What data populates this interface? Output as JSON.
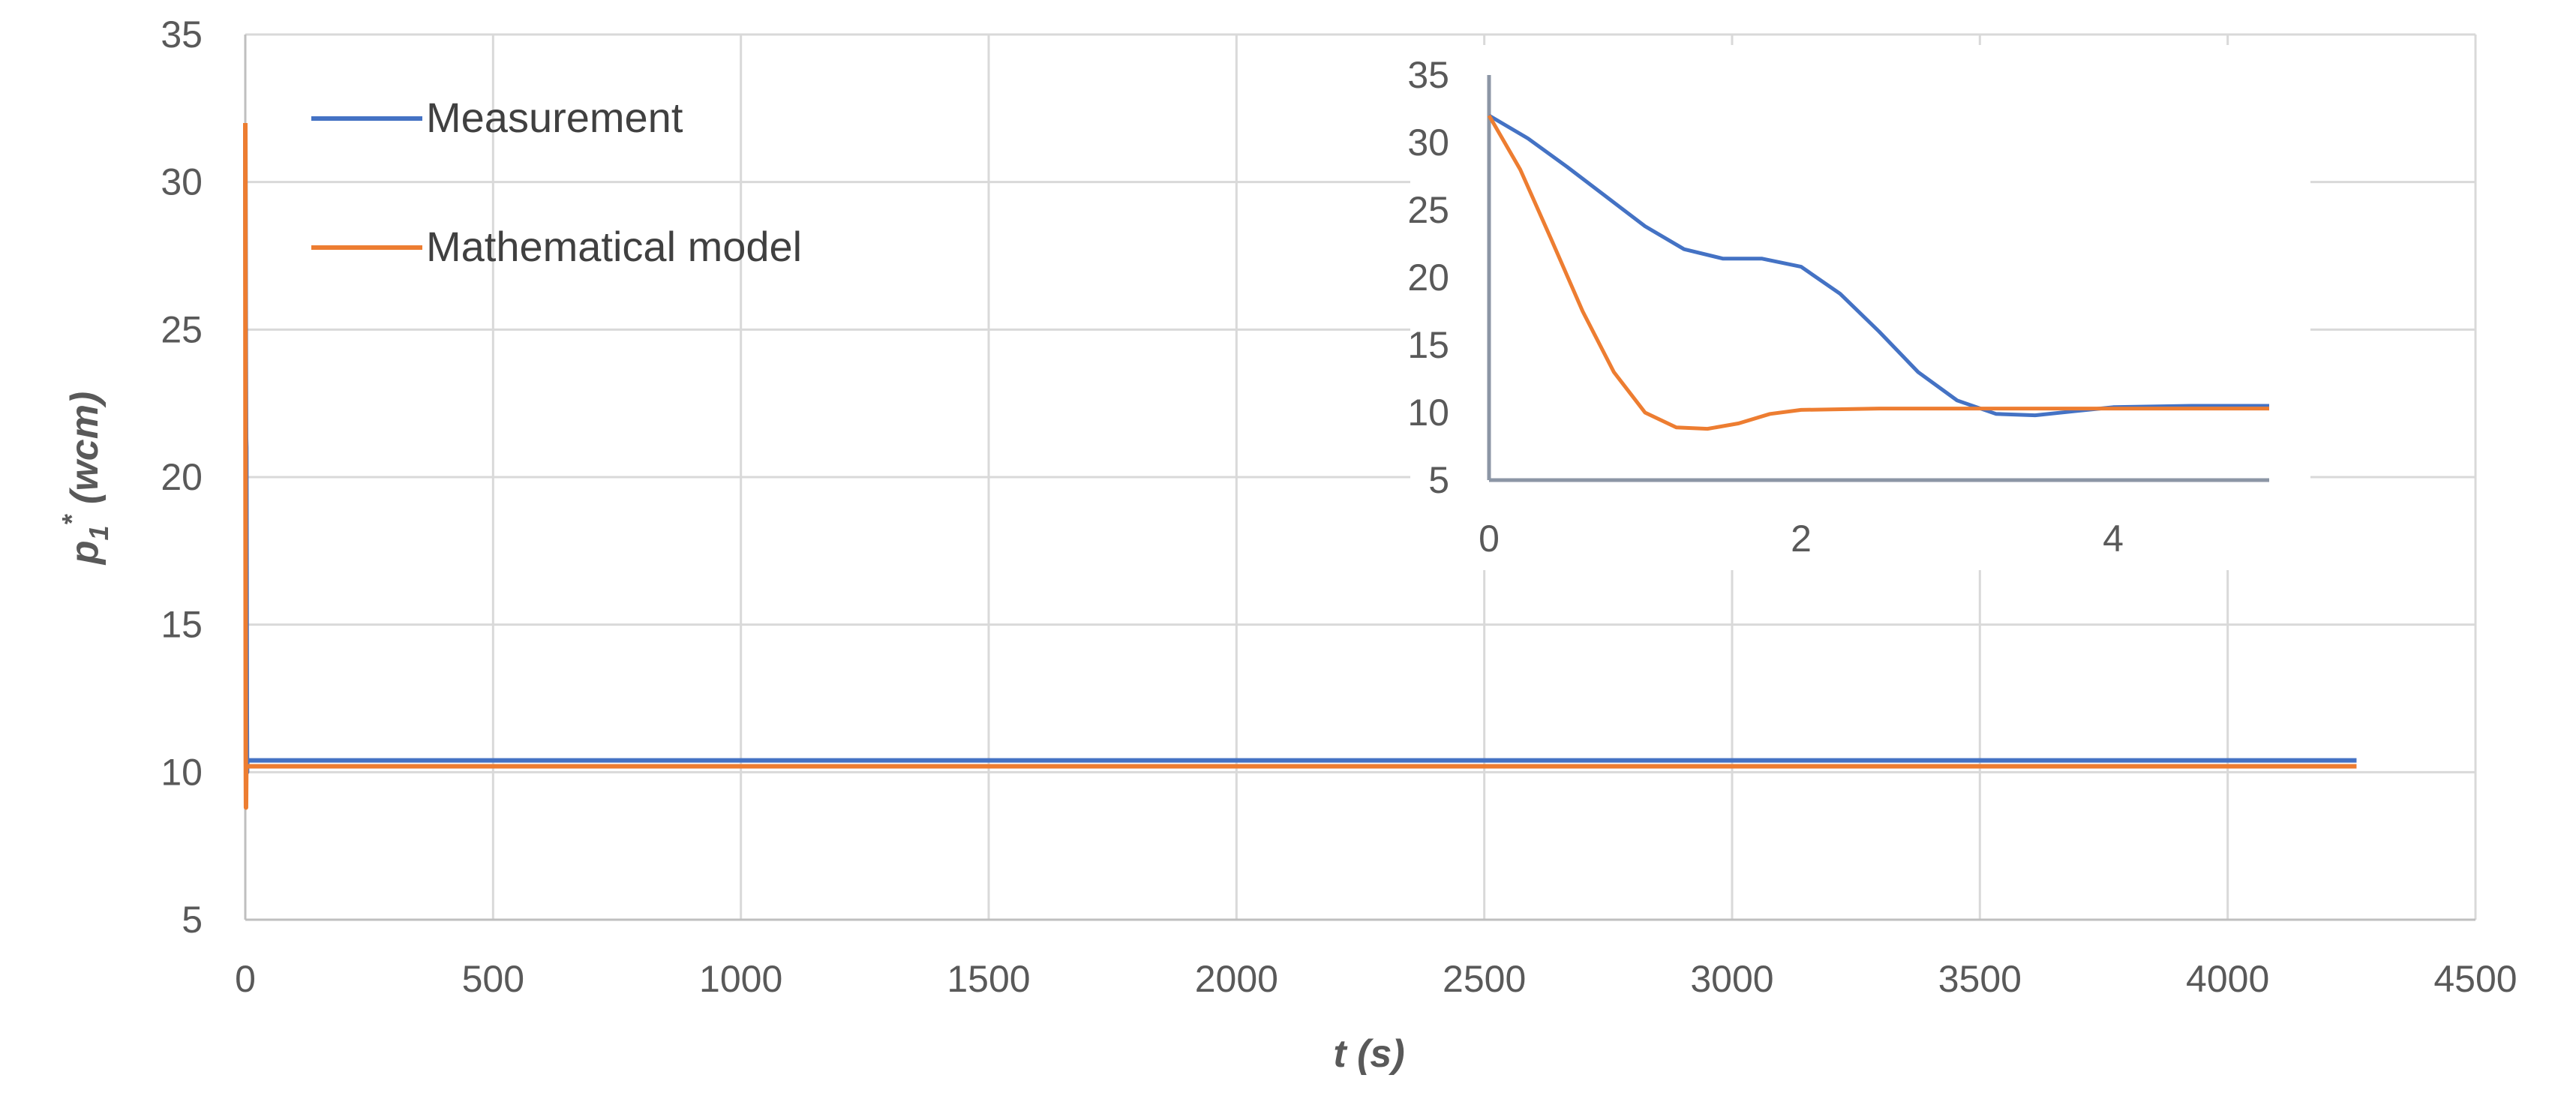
{
  "chart_data": [
    {
      "type": "line",
      "title": "",
      "xlabel": "t (s)",
      "ylabel": {
        "base": "p",
        "sub": "1",
        "sup": "*",
        "unit": " (wcm)"
      },
      "xlim": [
        0,
        4500
      ],
      "ylim": [
        5,
        35
      ],
      "xticks": [
        "0",
        "500",
        "1000",
        "1500",
        "2000",
        "2500",
        "3000",
        "3500",
        "4000",
        "4500"
      ],
      "yticks": [
        "5",
        "10",
        "15",
        "20",
        "25",
        "30",
        "35"
      ],
      "grid": true,
      "legend": {
        "placement": "top-left",
        "entries": [
          "Measurement",
          "Mathematical model"
        ]
      },
      "series": [
        {
          "name": "Measurement",
          "color": "#4472C4",
          "points": [
            [
              0,
              32
            ],
            [
              0.5,
              28
            ],
            [
              1,
              24
            ],
            [
              1.5,
              21.3
            ],
            [
              2,
              21
            ],
            [
              2.5,
              17
            ],
            [
              3,
              12
            ],
            [
              3.5,
              10
            ],
            [
              4,
              10.4
            ],
            [
              5,
              10.4
            ],
            [
              100,
              10.4
            ],
            [
              1000,
              10.4
            ],
            [
              2000,
              10.4
            ],
            [
              3000,
              10.4
            ],
            [
              4000,
              10.4
            ],
            [
              4260,
              10.4
            ]
          ]
        },
        {
          "name": "Mathematical model",
          "color": "#ED7D31",
          "points": [
            [
              0,
              32
            ],
            [
              0.5,
              19
            ],
            [
              1,
              10.5
            ],
            [
              1.4,
              8.8
            ],
            [
              2,
              10.2
            ],
            [
              3,
              10.2
            ],
            [
              4,
              10.2
            ],
            [
              5,
              10.2
            ],
            [
              100,
              10.2
            ],
            [
              1000,
              10.2
            ],
            [
              2000,
              10.2
            ],
            [
              3000,
              10.2
            ],
            [
              4000,
              10.2
            ],
            [
              4260,
              10.2
            ]
          ]
        }
      ]
    },
    {
      "type": "line",
      "title": "",
      "xlabel": "",
      "ylabel": "",
      "xlim": [
        0,
        5
      ],
      "ylim": [
        5,
        35
      ],
      "xticks": [
        "0",
        "2",
        "4"
      ],
      "yticks": [
        "5",
        "10",
        "15",
        "20",
        "25",
        "30",
        "35"
      ],
      "grid": false,
      "series": [
        {
          "color": "#4472C4",
          "points": [
            [
              0,
              32
            ],
            [
              0.25,
              30.3
            ],
            [
              0.5,
              28.2
            ],
            [
              0.75,
              26
            ],
            [
              1,
              23.8
            ],
            [
              1.25,
              22.1
            ],
            [
              1.5,
              21.4
            ],
            [
              1.75,
              21.4
            ],
            [
              2,
              20.8
            ],
            [
              2.25,
              18.8
            ],
            [
              2.5,
              16
            ],
            [
              2.75,
              13
            ],
            [
              3,
              10.9
            ],
            [
              3.25,
              9.9
            ],
            [
              3.5,
              9.8
            ],
            [
              3.75,
              10.1
            ],
            [
              4,
              10.4
            ],
            [
              4.5,
              10.5
            ],
            [
              5,
              10.5
            ]
          ]
        },
        {
          "color": "#ED7D31",
          "points": [
            [
              0,
              32
            ],
            [
              0.2,
              28
            ],
            [
              0.4,
              22.8
            ],
            [
              0.6,
              17.5
            ],
            [
              0.8,
              13
            ],
            [
              1,
              10
            ],
            [
              1.2,
              8.9
            ],
            [
              1.4,
              8.8
            ],
            [
              1.6,
              9.2
            ],
            [
              1.8,
              9.9
            ],
            [
              2,
              10.2
            ],
            [
              2.5,
              10.3
            ],
            [
              3,
              10.3
            ],
            [
              4,
              10.3
            ],
            [
              5,
              10.3
            ]
          ]
        }
      ]
    }
  ]
}
